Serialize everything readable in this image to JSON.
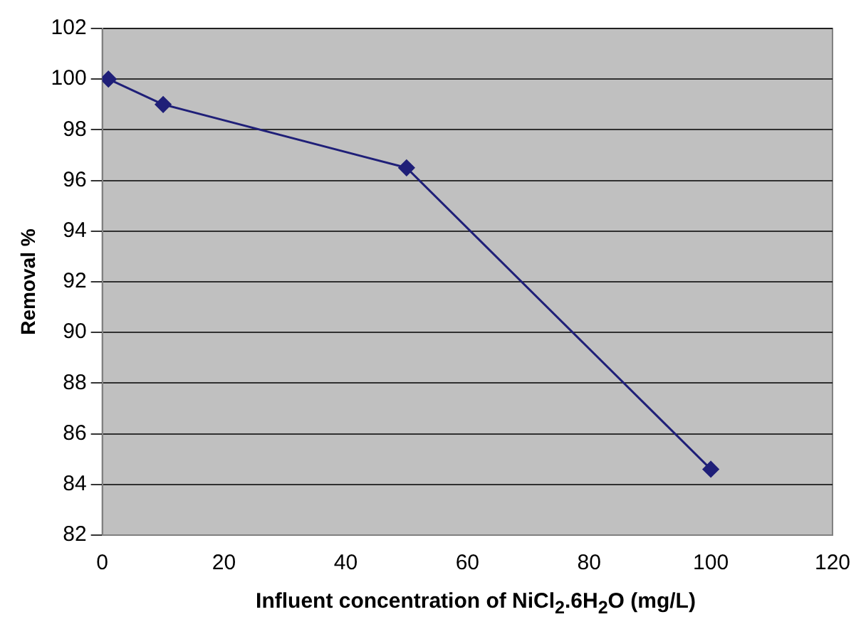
{
  "chart_data": {
    "type": "line",
    "xlabel": "Influent concentration of NiCl$_{2}$.6H$_{2}$O (mg/L)",
    "ylabel": "Removal %",
    "x": [
      1,
      10,
      50,
      100
    ],
    "series": [
      {
        "color": "#1f1f78",
        "values": [
          100,
          99,
          96.5,
          84.6
        ]
      }
    ],
    "xlim": [
      0,
      120
    ],
    "xticks": [
      0,
      20,
      40,
      60,
      80,
      100,
      120
    ],
    "ylim": [
      82,
      102
    ],
    "yticks": [
      82,
      84,
      86,
      88,
      90,
      92,
      94,
      96,
      98,
      100,
      102
    ],
    "grid": "y",
    "legend": false,
    "marker": "diamond",
    "line_style": "solid"
  }
}
